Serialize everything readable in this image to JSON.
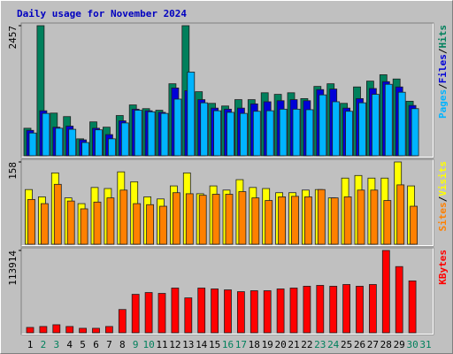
{
  "title": "Daily usage for November 2024",
  "chart_data": [
    {
      "type": "bar",
      "ylim": [
        0,
        2457
      ],
      "yticks": [
        2457
      ],
      "legend_separator": "/",
      "series": [
        {
          "name": "Hits",
          "color": "#00805c",
          "values": [
            520,
            2457,
            806,
            740,
            320,
            640,
            540,
            760,
            960,
            890,
            860,
            1360,
            2457,
            1210,
            990,
            940,
            1060,
            1060,
            1190,
            1160,
            1190,
            1080,
            1310,
            1360,
            990,
            1300,
            1410,
            1530,
            1450,
            1030,
            null
          ]
        },
        {
          "name": "Files",
          "color": "#0000d8",
          "values": [
            480,
            850,
            540,
            560,
            300,
            520,
            400,
            660,
            880,
            850,
            820,
            1280,
            1230,
            1060,
            900,
            880,
            900,
            980,
            1020,
            1040,
            1060,
            1040,
            1250,
            1260,
            900,
            1080,
            1270,
            1400,
            1300,
            950,
            null
          ]
        },
        {
          "name": "Pages",
          "color": "#00b4ff",
          "values": [
            430,
            800,
            520,
            500,
            250,
            490,
            320,
            620,
            860,
            830,
            800,
            1070,
            1580,
            1000,
            850,
            820,
            800,
            840,
            850,
            880,
            880,
            870,
            1150,
            1020,
            840,
            1000,
            1160,
            1350,
            1200,
            890,
            null
          ]
        }
      ]
    },
    {
      "type": "bar",
      "ylim": [
        0,
        158
      ],
      "yticks": [
        158
      ],
      "legend_separator": "/",
      "series": [
        {
          "name": "Visits",
          "color": "#ffff00",
          "values": [
            105,
            91,
            137,
            89,
            78,
            109,
            107,
            139,
            120,
            91,
            87,
            112,
            137,
            97,
            112,
            104,
            124,
            109,
            107,
            99,
            99,
            104,
            105,
            89,
            127,
            132,
            127,
            127,
            158,
            112,
            null
          ]
        },
        {
          "name": "Sites",
          "color": "#ff8000",
          "values": [
            86,
            78,
            115,
            83,
            68,
            81,
            89,
            104,
            78,
            76,
            73,
            99,
            97,
            94,
            96,
            96,
            101,
            89,
            84,
            91,
            92,
            91,
            105,
            89,
            91,
            104,
            104,
            84,
            114,
            73,
            null
          ]
        }
      ]
    },
    {
      "type": "bar",
      "ylim": [
        0,
        113914
      ],
      "yticks": [
        113914
      ],
      "series": [
        {
          "name": "KBytes",
          "color": "#ff0000",
          "values": [
            7400,
            8700,
            11100,
            8700,
            6200,
            6200,
            8700,
            32200,
            53200,
            55700,
            54500,
            61900,
            48300,
            61900,
            60700,
            59400,
            56900,
            58200,
            58200,
            60700,
            61900,
            64400,
            65600,
            64400,
            66800,
            64400,
            66800,
            113914,
            91600,
            71800,
            null
          ]
        }
      ],
      "categories": [
        "1",
        "2",
        "3",
        "4",
        "5",
        "6",
        "7",
        "8",
        "9",
        "10",
        "11",
        "12",
        "13",
        "14",
        "15",
        "16",
        "17",
        "18",
        "19",
        "20",
        "21",
        "22",
        "23",
        "24",
        "25",
        "26",
        "27",
        "28",
        "29",
        "30",
        "31"
      ],
      "category_colors": [
        "#000000",
        "#00805c",
        "#00805c",
        "#000000",
        "#000000",
        "#000000",
        "#000000",
        "#000000",
        "#00805c",
        "#00805c",
        "#000000",
        "#000000",
        "#000000",
        "#000000",
        "#000000",
        "#00805c",
        "#00805c",
        "#000000",
        "#000000",
        "#000000",
        "#000000",
        "#000000",
        "#00805c",
        "#00805c",
        "#000000",
        "#000000",
        "#000000",
        "#000000",
        "#000000",
        "#00805c",
        "#00805c"
      ]
    }
  ]
}
